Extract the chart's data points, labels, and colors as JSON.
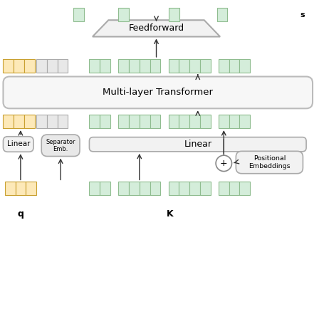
{
  "bg_color": "#ffffff",
  "orange_fill": "#fde9b8",
  "orange_edge": "#c8a030",
  "green_fill": "#d4edda",
  "green_edge": "#8fbc8f",
  "gray_fill": "#e8e8e8",
  "gray_edge": "#aaaaaa",
  "box_fill": "#f2f2f2",
  "box_edge": "#aaaaaa",
  "arrow_color": "#333333",
  "text_color": "#000000",
  "label_q": "q",
  "label_K": "K",
  "label_s": "s",
  "label_feedforward": "Feedforward",
  "label_transformer": "Multi-layer Transformer",
  "label_linear_left": "Linear",
  "label_separator": "Separator\nEmb.",
  "label_linear_right": "Linear",
  "label_positional": "Positional\nEmbeddings",
  "label_plus": "+"
}
